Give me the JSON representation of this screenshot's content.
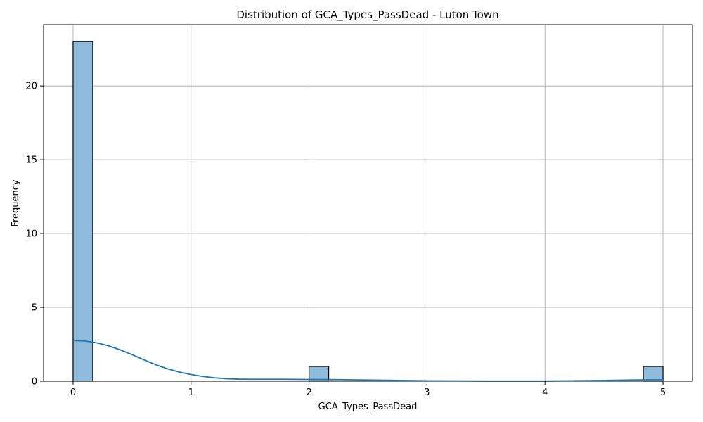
{
  "chart_data": {
    "type": "bar",
    "subtype": "histogram-with-kde",
    "title": "Distribution of GCA_Types_PassDead - Luton Town",
    "xlabel": "GCA_Types_PassDead",
    "ylabel": "Frequency",
    "xlim": [
      -0.25,
      5.25
    ],
    "ylim": [
      0,
      24.15
    ],
    "xticks": [
      0,
      1,
      2,
      3,
      4,
      5
    ],
    "yticks": [
      0,
      5,
      10,
      15,
      20
    ],
    "grid": true,
    "bins": [
      {
        "x_start": 0.0,
        "x_end": 0.1667,
        "count": 23
      },
      {
        "x_start": 2.0,
        "x_end": 2.1667,
        "count": 1
      },
      {
        "x_start": 4.8333,
        "x_end": 5.0,
        "count": 1
      }
    ],
    "kde": {
      "x": [
        0.0,
        0.1,
        0.2,
        0.3,
        0.4,
        0.5,
        0.6,
        0.7,
        0.8,
        0.9,
        1.0,
        1.1,
        1.2,
        1.3,
        1.4,
        1.5,
        1.6,
        1.8,
        2.0,
        2.2,
        2.5,
        3.0,
        3.5,
        4.0,
        4.5,
        4.8,
        5.0
      ],
      "y": [
        2.75,
        2.72,
        2.6,
        2.4,
        2.12,
        1.8,
        1.45,
        1.12,
        0.84,
        0.62,
        0.45,
        0.32,
        0.23,
        0.17,
        0.14,
        0.13,
        0.13,
        0.13,
        0.12,
        0.11,
        0.08,
        0.03,
        0.01,
        0.01,
        0.05,
        0.09,
        0.1
      ]
    },
    "colors": {
      "bar_fill": "#8fbbdc",
      "bar_edge": "#000000",
      "kde_line": "#1f77b4",
      "grid": "#b0b0b0"
    }
  }
}
